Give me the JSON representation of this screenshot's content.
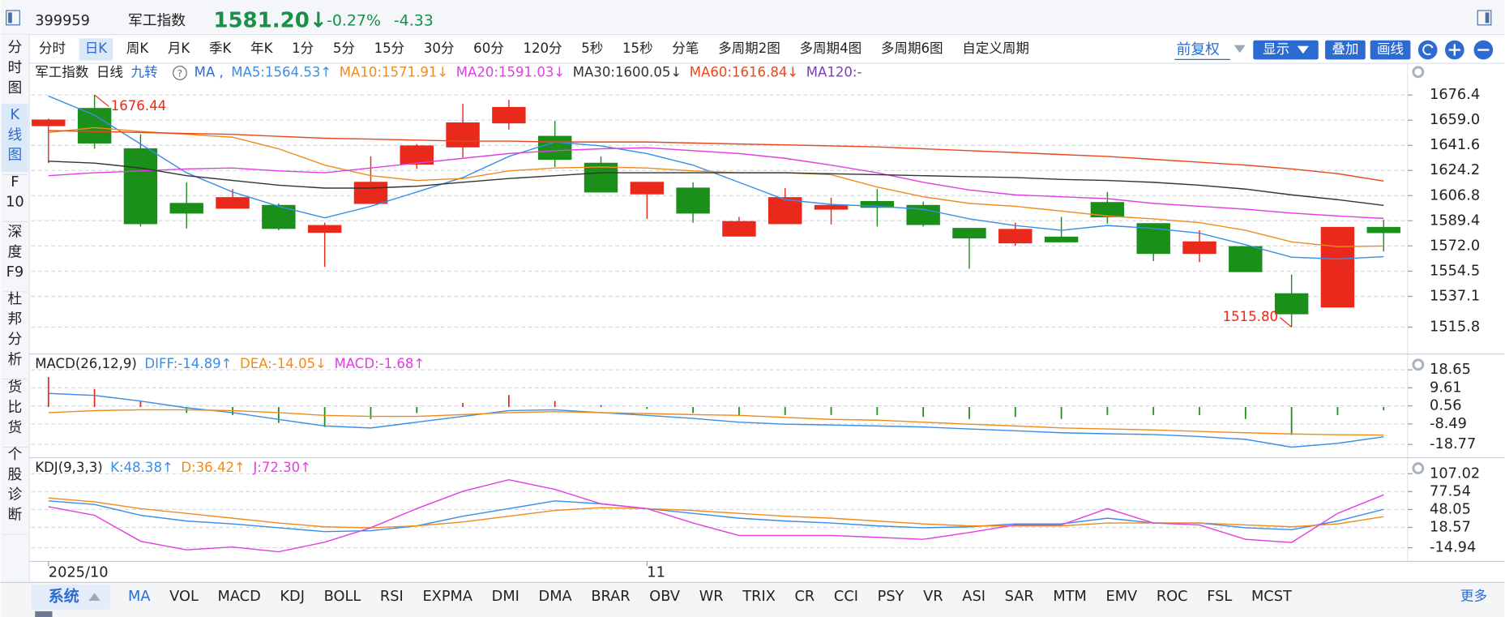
{
  "header": {
    "code": "399959",
    "name": "军工指数",
    "price": "1581.20↓",
    "change_pct": "-0.27%",
    "change": "-4.33"
  },
  "left_tabs": [
    [
      "分",
      "时",
      "图"
    ],
    [
      "K",
      "线",
      "图"
    ],
    [
      "F",
      "10"
    ],
    [
      "深",
      "度",
      "F9"
    ],
    [
      "杜",
      "邦",
      "分",
      "析"
    ],
    [
      "货",
      "比",
      "货"
    ],
    [
      "个",
      "股",
      "诊",
      "断"
    ]
  ],
  "periods": [
    "分时",
    "日K",
    "周K",
    "月K",
    "季K",
    "年K",
    "1分",
    "5分",
    "15分",
    "30分",
    "60分",
    "120分",
    "5秒",
    "15秒",
    "分笔",
    "多周期2图",
    "多周期4图",
    "多周期6图",
    "自定义周期"
  ],
  "toolbar_right": {
    "fuquan": "前复权",
    "display": "显示",
    "overlay": "叠加",
    "draw": "画线"
  },
  "bottom_tabs": {
    "system": "系统",
    "items": [
      "MA",
      "VOL",
      "MACD",
      "KDJ",
      "BOLL",
      "RSI",
      "EXPMA",
      "DMI",
      "DMA",
      "BRAR",
      "OBV",
      "WR",
      "TRIX",
      "CR",
      "CCI",
      "PSY",
      "VR",
      "ASI",
      "SAR",
      "MTM",
      "EMV",
      "ROC",
      "FSL",
      "MCST"
    ],
    "more": "更多"
  },
  "chart_data": [
    {
      "type": "candlestick",
      "title": "军工指数",
      "subtitle": "日线",
      "nine_turn": "九转",
      "ma_label": "MA ,",
      "up_color": "#e8291c",
      "down_color": "#1a8f1a",
      "annotation_color": "#e8291c",
      "grid": true,
      "ylim": [
        1497.8,
        1697.0
      ],
      "yticks": [
        1676.4,
        {
          "value": 1659,
          "label": "1659.0"
        },
        1641.6,
        1624.2,
        1606.8,
        1589.4,
        {
          "value": 1572,
          "label": "1572.0"
        },
        1554.5,
        1537.1,
        1515.8
      ],
      "open": [
        1655.2,
        1667.1,
        1639.2,
        1601.4,
        1598.1,
        1600.0,
        1581.4,
        1601.4,
        1628.6,
        1640.5,
        1657.1,
        1647.8,
        1629.2,
        1608.0,
        1612.0,
        1578.8,
        1587.4,
        1597.4,
        1602.7,
        1600.0,
        1584.1,
        1574.1,
        1578.1,
        1602.0,
        1587.4,
        1566.8,
        1571.5,
        1538.9,
        1529.7,
        1584.8
      ],
      "high": [
        1660.0,
        1676.44,
        1649.2,
        1616.0,
        1611.3,
        1601.4,
        1588.1,
        1633.9,
        1642.5,
        1670.4,
        1673.1,
        1658.5,
        1633.9,
        1616.0,
        1616.0,
        1592.1,
        1612.0,
        1605.4,
        1611.3,
        1602.7,
        1584.1,
        1588.1,
        1592.1,
        1609.3,
        1587.4,
        1582.8,
        1571.5,
        1552.2,
        1584.8,
        1590.1
      ],
      "low": [
        1629.3,
        1639.2,
        1585.4,
        1584.1,
        1598.1,
        1582.8,
        1557.5,
        1601.4,
        1625.3,
        1633.2,
        1652.5,
        1626.6,
        1609.3,
        1590.7,
        1588.1,
        1578.8,
        1587.4,
        1586.8,
        1585.4,
        1585.4,
        1556.2,
        1572.1,
        1574.8,
        1587.4,
        1561.5,
        1560.8,
        1554.2,
        1515.8,
        1529.7,
        1568.2
      ],
      "close": [
        1659.1,
        1643.2,
        1587.4,
        1594.7,
        1605.4,
        1584.1,
        1586.1,
        1616.0,
        1641.2,
        1657.1,
        1667.8,
        1631.9,
        1609.3,
        1616.0,
        1594.7,
        1588.8,
        1605.4,
        1600.0,
        1598.7,
        1586.8,
        1577.5,
        1583.4,
        1574.8,
        1592.1,
        1566.8,
        1574.8,
        1554.2,
        1525.0,
        1584.8,
        1581.2
      ],
      "annotations": [
        {
          "value": 1676.44,
          "label": "1676.44"
        },
        {
          "value": 1515.8,
          "label": "1515.80"
        }
      ],
      "series": [
        {
          "name": "MA5:1564.53↑",
          "color": "#3a8ee6",
          "values": [
            1675.7,
            1662.5,
            1642.5,
            1622.6,
            1609.3,
            1599.4,
            1591.4,
            1599.4,
            1609.3,
            1619.3,
            1633.9,
            1643.9,
            1641.2,
            1635.9,
            1627.9,
            1616.0,
            1604.0,
            1600.7,
            1599.4,
            1597.4,
            1590.7,
            1586.1,
            1582.8,
            1586.1,
            1584.1,
            1580.8,
            1572.8,
            1564.2,
            1562.9,
            1564.53
          ]
        },
        {
          "name": "MA10:1571.91↓",
          "color": "#f08c1e",
          "values": [
            1650.5,
            1653.8,
            1651.2,
            1649.2,
            1647.2,
            1639.2,
            1627.9,
            1620.6,
            1617.3,
            1618.6,
            1623.9,
            1625.9,
            1626.6,
            1625.9,
            1623.9,
            1622.6,
            1622.6,
            1621.3,
            1612.7,
            1606.0,
            1601.4,
            1599.4,
            1596.1,
            1592.7,
            1590.7,
            1588.1,
            1582.8,
            1574.8,
            1571.5,
            1571.91
          ]
        },
        {
          "name": "MA20:1591.03↓",
          "color": "#e040e0",
          "values": [
            1620.6,
            1622.6,
            1623.9,
            1625.3,
            1625.9,
            1623.9,
            1622.6,
            1625.9,
            1629.3,
            1632.6,
            1635.9,
            1637.9,
            1639.2,
            1639.9,
            1637.9,
            1635.9,
            1632.6,
            1627.9,
            1622.6,
            1616.0,
            1610.7,
            1607.3,
            1606.0,
            1604.7,
            1601.4,
            1599.4,
            1597.4,
            1594.7,
            1592.7,
            1591.03
          ]
        },
        {
          "name": "MA30:1600.05↓",
          "color": "#333333",
          "values": [
            1630.6,
            1629.3,
            1625.9,
            1620.6,
            1617.3,
            1614.0,
            1612.0,
            1612.0,
            1613.3,
            1616.0,
            1618.6,
            1620.6,
            1622.6,
            1622.6,
            1622.6,
            1622.6,
            1622.6,
            1621.9,
            1621.3,
            1620.6,
            1619.9,
            1619.3,
            1618.0,
            1617.3,
            1616.0,
            1614.0,
            1611.3,
            1607.3,
            1604.0,
            1600.05
          ]
        },
        {
          "name": "MA60:1616.84↓",
          "color": "#e8481c",
          "values": [
            1651.8,
            1651.2,
            1650.5,
            1649.8,
            1649.2,
            1647.8,
            1646.5,
            1645.9,
            1645.2,
            1644.5,
            1644.5,
            1643.9,
            1643.9,
            1643.9,
            1643.2,
            1642.5,
            1641.9,
            1641.2,
            1640.5,
            1639.2,
            1637.9,
            1636.6,
            1635.2,
            1633.9,
            1631.9,
            1629.9,
            1627.9,
            1625.3,
            1622.0,
            1616.84
          ]
        },
        {
          "name": "MA120:-",
          "color": "#7b3fb5",
          "values": [
            null,
            null,
            null,
            null,
            null,
            null,
            null,
            null,
            null,
            null,
            null,
            null,
            null,
            null,
            null,
            null,
            null,
            null,
            null,
            null,
            null,
            null,
            null,
            null,
            null,
            null,
            null,
            null,
            null,
            null
          ]
        }
      ]
    },
    {
      "type": "combo",
      "title": "MACD(26,12,9)",
      "up_color": "#e8291c",
      "down_color": "#1a8f1a",
      "grid": true,
      "ylim": [
        -23.96,
        25.08
      ],
      "yticks": [
        18.65,
        9.61,
        0.56,
        -8.49,
        -18.77
      ],
      "series": [
        {
          "name": "DIFF:-14.89↑",
          "color": "#3a8ee6",
          "values": [
            6.8,
            5.8,
            2.96,
            -0.4,
            -2.8,
            -6.2,
            -9.5,
            -10.5,
            -7.6,
            -4.7,
            -1.8,
            -1.4,
            -2.8,
            -4.2,
            -5.7,
            -7.6,
            -8.6,
            -9.0,
            -9.5,
            -10.0,
            -11.0,
            -11.9,
            -12.9,
            -13.4,
            -13.8,
            -14.8,
            -16.2,
            -20.1,
            -18.2,
            -14.89
          ]
        },
        {
          "name": "DEA:-14.05↓",
          "color": "#f08c1e",
          "values": [
            -2.8,
            -1.8,
            -1.4,
            -1.4,
            -1.8,
            -2.8,
            -4.2,
            -4.7,
            -4.7,
            -3.8,
            -2.8,
            -2.3,
            -2.8,
            -3.3,
            -3.8,
            -4.2,
            -5.2,
            -6.2,
            -6.6,
            -7.6,
            -8.6,
            -9.5,
            -10.5,
            -11.0,
            -11.5,
            -12.2,
            -12.9,
            -13.5,
            -13.9,
            -14.05
          ]
        },
        {
          "name": "MACD:-1.68↑",
          "color": "#e040e0",
          "kind": "bar",
          "values": [
            15,
            9,
            3,
            -3,
            -4,
            -8,
            -10,
            -6,
            -3,
            2,
            6,
            3,
            1,
            -1,
            -3,
            -4,
            -4,
            -4,
            -4,
            -5,
            -6,
            -5,
            -6,
            -4,
            -4,
            -4,
            -6,
            -14,
            -4,
            -1.68
          ]
        }
      ]
    },
    {
      "type": "line",
      "title": "KDJ(9,3,3)",
      "grid": true,
      "ylim": [
        -32.6,
        128.7
      ],
      "yticks": [
        107.02,
        77.54,
        48.05,
        18.57,
        -14.94
      ],
      "categories": [
        "2025/10",
        null,
        null,
        null,
        null,
        null,
        null,
        null,
        null,
        null,
        null,
        null,
        null,
        "11",
        null,
        null,
        null,
        null,
        null,
        null,
        null,
        null,
        null,
        null,
        null,
        null,
        null,
        null,
        null,
        null
      ],
      "series": [
        {
          "name": "K:48.38↑",
          "color": "#3a8ee6",
          "values": [
            62.3,
            56.4,
            38.6,
            29.1,
            24.3,
            18.0,
            11.7,
            13.2,
            21.1,
            37.0,
            49.6,
            62.3,
            57.5,
            49.6,
            41.7,
            33.8,
            29.1,
            25.9,
            21.1,
            18.0,
            19.6,
            24.3,
            24.3,
            33.8,
            25.9,
            25.9,
            18.0,
            14.8,
            29.1,
            48.38
          ]
        },
        {
          "name": "D:36.42↑",
          "color": "#f08c1e",
          "values": [
            67.0,
            60.7,
            49.6,
            41.7,
            33.8,
            25.9,
            19.6,
            18.0,
            21.1,
            27.5,
            37.0,
            46.5,
            51.2,
            49.6,
            46.5,
            41.7,
            37.0,
            33.8,
            29.1,
            24.3,
            21.1,
            21.1,
            21.1,
            25.9,
            25.9,
            25.9,
            22.7,
            19.6,
            24.3,
            36.42
          ]
        },
        {
          "name": "J:72.30↑",
          "color": "#e040e0",
          "values": [
            52.8,
            38.6,
            -4.2,
            -18.4,
            -13.7,
            -21.6,
            -5.7,
            18.0,
            49.6,
            78.1,
            97.1,
            81.3,
            57.5,
            49.6,
            25.9,
            5.3,
            5.3,
            5.3,
            2.2,
            -1.0,
            10.1,
            22.7,
            22.7,
            49.6,
            25.9,
            22.7,
            -1.0,
            -6.3,
            41.7,
            72.3
          ]
        }
      ]
    }
  ]
}
